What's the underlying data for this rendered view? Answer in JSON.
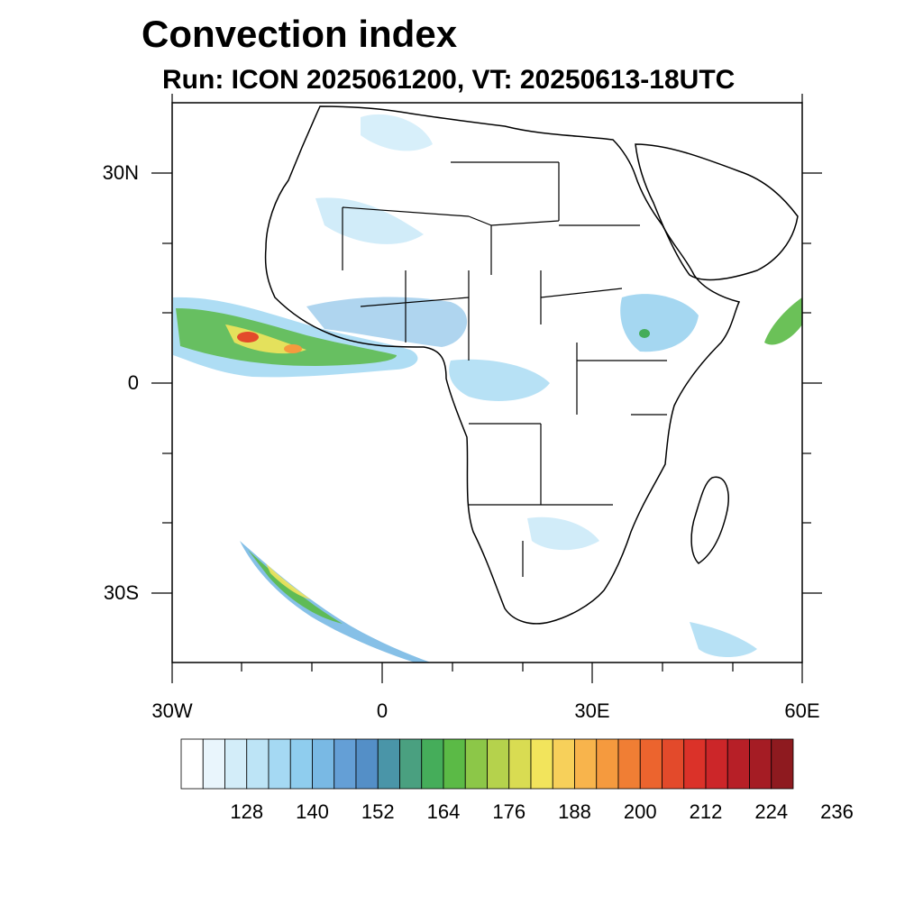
{
  "title": "Convection index",
  "subtitle": "Run: ICON 2025061200,  VT: 20250613-18UTC",
  "map": {
    "region": "Africa",
    "lon_range": [
      -30,
      60
    ],
    "lat_range": [
      -40,
      40
    ],
    "lat_ticks": [
      {
        "value": 30,
        "label": "30N"
      },
      {
        "value": 0,
        "label": "0"
      },
      {
        "value": -30,
        "label": "30S"
      }
    ],
    "lon_ticks": [
      {
        "value": -30,
        "label": "30W"
      },
      {
        "value": 0,
        "label": "0"
      },
      {
        "value": 30,
        "label": "30E"
      },
      {
        "value": 60,
        "label": "60E"
      }
    ]
  },
  "colorbar": {
    "colors": [
      "#ffffff",
      "#e9f5fc",
      "#d3edf9",
      "#bde4f6",
      "#a5d9f3",
      "#8fcdee",
      "#79b9e4",
      "#649fd6",
      "#548fc7",
      "#4a95a8",
      "#4aa080",
      "#45ad5a",
      "#5bba46",
      "#8cc748",
      "#b5d24c",
      "#d9dc52",
      "#f2e45c",
      "#f7d05a",
      "#f8b44c",
      "#f59a3e",
      "#f07e34",
      "#ec642e",
      "#e34a2b",
      "#db3229",
      "#cc2629",
      "#b71f27",
      "#a51c24",
      "#8e1a1f"
    ],
    "labels": [
      "128",
      "140",
      "152",
      "164",
      "176",
      "188",
      "200",
      "212",
      "224",
      "236"
    ]
  }
}
